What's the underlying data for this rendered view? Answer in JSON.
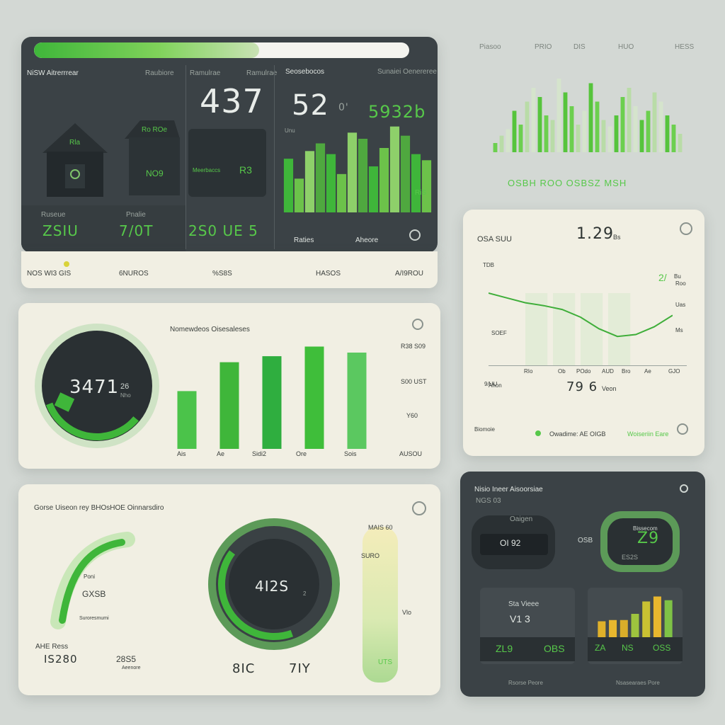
{
  "top_panel": {
    "progress_pct": 0.6,
    "title": "NiSW Aitrerrrear",
    "col2_label": "Raubiore",
    "col3_label": "Ramulrae",
    "col4_label": "Seosebocos",
    "col5_label": "Sunaiei Oenereree",
    "big_value_1": "437",
    "big_value_2": "52",
    "big_value_2_suffix": "0'",
    "big_value_3": "5932b",
    "house_1_label": "Rla",
    "house_2_label": "Ro ROe",
    "house_2_value": "NO9",
    "tile_3_label": "Meerbaccs",
    "tile_3_value": "R3",
    "chart_axis_label": "Unu",
    "chart_side_label": "RiS",
    "stat_1_label": "Ruseue",
    "stat_1_value": "ZSIU",
    "stat_2_label": "Pnalie",
    "stat_2_value": "7/0T",
    "stat_3_value": "2S0 UE 5",
    "footer_label_1": "Raties",
    "footer_label_2": "Aheore",
    "strip": [
      "NOS WI3 GIS",
      "6NUROS",
      "%S8S",
      "HASOS",
      "A/I9ROU"
    ]
  },
  "bar_panel": {
    "header": [
      "Piasoo",
      "PRIO",
      "DIS",
      "HUO",
      "HESS"
    ],
    "footer": "OSBH ROO OSBSZ MSH"
  },
  "gauge_panel": {
    "title": "Nomewdeos Oisesaleses",
    "gauge_value": "3471",
    "gauge_unit": "26",
    "gauge_sub": "Nho",
    "side_values": [
      "R38 S09",
      "S00 UST",
      "Y60"
    ],
    "categories": [
      "Ais",
      "Ae",
      "Sidi2",
      "Ore",
      "Sois",
      "AUSOU"
    ]
  },
  "line_panel": {
    "tag": "OSA SUU",
    "value": "1.29",
    "unit": "Bs",
    "ylabels": [
      "TDB",
      "SOEF",
      "9/UU"
    ],
    "right_value": "2/",
    "right_unit": "Bu",
    "right_labels": [
      "Roo",
      "Uas",
      "Ms"
    ],
    "xlabels": [
      "RIo",
      "Ob",
      "POdo",
      "AUD",
      "Bro",
      "Ae",
      "GJO"
    ],
    "bottom_value": "79 6",
    "bottom_unit": "Veon",
    "bottom_left": "Ahon",
    "footer_left": "Biomoie",
    "footer_mid": "Owadime: AE OIGB",
    "footer_right": "Woiseriin Eare"
  },
  "summary_panel": {
    "title": "Gorse Uiseon rey BHOsHOE Oinnarsdiro",
    "arc_label": "Poni",
    "arc_value": "GXSB",
    "arc_sub": "Suroresmumi",
    "bottom_left_label": "AHE Ress",
    "bottom_left_value": "IS280",
    "bottom_mid_value": "28S5",
    "bottom_mid_sub": "Aeenore",
    "ring_value": "4I2S",
    "ring_sub": "2",
    "ring_caption": "8IC",
    "ring_caption_2": "7IY",
    "col_label": "MAIS 60",
    "col_value": "SURO",
    "col_mid": "Vlo",
    "col_bottom": "UTS"
  },
  "device_panel": {
    "title": "Nisio Ineer Aisoorsiae",
    "subtitle": "NGS 03",
    "left_label": "Oaigen",
    "left_value": "OI 92",
    "left_prefix": "OSB",
    "right_label": "Bissecom",
    "right_value": "Z9",
    "right_sub": "ES2S",
    "tile_1_title": "Sta Vieee",
    "tile_1_value": "V1 3",
    "tile_1_stats": [
      "ZL9",
      "OBS"
    ],
    "tile_2_stats": [
      "ZA",
      "NS",
      "OSS"
    ],
    "footer_1": "Rsorse Peore",
    "footer_2": "Nsasearaes Pore"
  },
  "chart_data": [
    {
      "type": "bar",
      "categories": [
        "1",
        "2",
        "3",
        "4",
        "5",
        "6",
        "7",
        "8",
        "9",
        "10",
        "11",
        "12",
        "13",
        "14"
      ],
      "values": [
        35,
        22,
        40,
        45,
        38,
        25,
        52,
        48,
        30,
        42,
        56,
        50,
        38,
        34
      ],
      "ylim": [
        0,
        60
      ]
    },
    {
      "type": "bar",
      "categories": [
        "1",
        "2",
        "3",
        "4",
        "5",
        "6",
        "7",
        "8",
        "9",
        "10",
        "11",
        "12",
        "13",
        "14",
        "15",
        "16",
        "17",
        "18",
        "19",
        "20",
        "21",
        "22",
        "23",
        "24",
        "25",
        "26",
        "27",
        "28",
        "29",
        "30"
      ],
      "values": [
        10,
        18,
        25,
        45,
        30,
        55,
        70,
        60,
        40,
        35,
        80,
        65,
        50,
        30,
        45,
        75,
        55,
        35,
        28,
        40,
        60,
        70,
        50,
        35,
        45,
        65,
        55,
        40,
        30,
        20
      ],
      "ylim": [
        0,
        100
      ]
    },
    {
      "type": "bar",
      "categories": [
        "Ais",
        "Ae",
        "Sidi2",
        "Ore",
        "Sois"
      ],
      "values": [
        48,
        72,
        77,
        85,
        80
      ],
      "ylim": [
        0,
        100
      ]
    },
    {
      "type": "line",
      "x": [
        0,
        1,
        2,
        3,
        4,
        5,
        6,
        7,
        8,
        9,
        10
      ],
      "y": [
        75,
        70,
        65,
        62,
        58,
        50,
        38,
        30,
        32,
        40,
        52
      ],
      "ylim": [
        0,
        100
      ]
    },
    {
      "type": "bar",
      "categories": [
        "1",
        "2",
        "3",
        "4",
        "5",
        "6",
        "7"
      ],
      "values": [
        28,
        30,
        30,
        40,
        60,
        68,
        62
      ],
      "ylim": [
        0,
        80
      ]
    }
  ]
}
